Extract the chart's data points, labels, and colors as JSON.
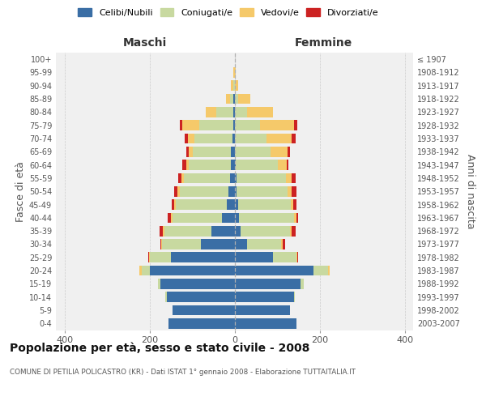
{
  "age_groups": [
    "0-4",
    "5-9",
    "10-14",
    "15-19",
    "20-24",
    "25-29",
    "30-34",
    "35-39",
    "40-44",
    "45-49",
    "50-54",
    "55-59",
    "60-64",
    "65-69",
    "70-74",
    "75-79",
    "80-84",
    "85-89",
    "90-94",
    "95-99",
    "100+"
  ],
  "birth_years": [
    "2003-2007",
    "1998-2002",
    "1993-1997",
    "1988-1992",
    "1983-1987",
    "1978-1982",
    "1973-1977",
    "1968-1972",
    "1963-1967",
    "1958-1962",
    "1953-1957",
    "1948-1952",
    "1943-1947",
    "1938-1942",
    "1933-1937",
    "1928-1932",
    "1923-1927",
    "1918-1922",
    "1913-1917",
    "1908-1912",
    "≤ 1907"
  ],
  "colors": {
    "celibe": "#3a6ea5",
    "coniugato": "#c8d9a0",
    "vedovo": "#f5c96a",
    "divorziato": "#cc2222"
  },
  "male": {
    "celibe": [
      155,
      145,
      160,
      175,
      200,
      150,
      80,
      55,
      30,
      18,
      14,
      10,
      8,
      8,
      5,
      3,
      2,
      2,
      0,
      0,
      0
    ],
    "coniugato": [
      0,
      0,
      2,
      5,
      18,
      50,
      90,
      110,
      115,
      120,
      115,
      110,
      100,
      90,
      90,
      80,
      40,
      8,
      3,
      0,
      0
    ],
    "vedovo": [
      0,
      0,
      0,
      0,
      5,
      1,
      2,
      3,
      4,
      4,
      5,
      5,
      5,
      10,
      15,
      40,
      25,
      10,
      5,
      2,
      0
    ],
    "divorziato": [
      0,
      0,
      0,
      0,
      0,
      2,
      3,
      8,
      8,
      5,
      8,
      8,
      10,
      5,
      8,
      5,
      0,
      0,
      0,
      0,
      0
    ]
  },
  "female": {
    "nubile": [
      145,
      130,
      140,
      155,
      185,
      90,
      30,
      15,
      10,
      8,
      5,
      5,
      2,
      0,
      0,
      0,
      0,
      0,
      0,
      0,
      0
    ],
    "coniugata": [
      0,
      0,
      2,
      8,
      35,
      55,
      80,
      115,
      130,
      125,
      120,
      115,
      100,
      85,
      75,
      60,
      30,
      8,
      0,
      0,
      0
    ],
    "vedova": [
      0,
      0,
      0,
      0,
      4,
      2,
      4,
      5,
      5,
      5,
      10,
      15,
      20,
      40,
      60,
      80,
      60,
      30,
      8,
      2,
      1
    ],
    "divorziata": [
      0,
      0,
      0,
      0,
      0,
      2,
      5,
      8,
      5,
      8,
      10,
      8,
      5,
      5,
      8,
      8,
      0,
      0,
      0,
      0,
      0
    ]
  },
  "xlim": 420,
  "title": "Popolazione per età, sesso e stato civile - 2008",
  "subtitle": "COMUNE DI PETILIA POLICASTRO (KR) - Dati ISTAT 1° gennaio 2008 - Elaborazione TUTTAITALIA.IT",
  "ylabel_left": "Fasce di età",
  "ylabel_right": "Anni di nascita",
  "bg_color": "#f0f0f0",
  "grid_color": "#cccccc"
}
